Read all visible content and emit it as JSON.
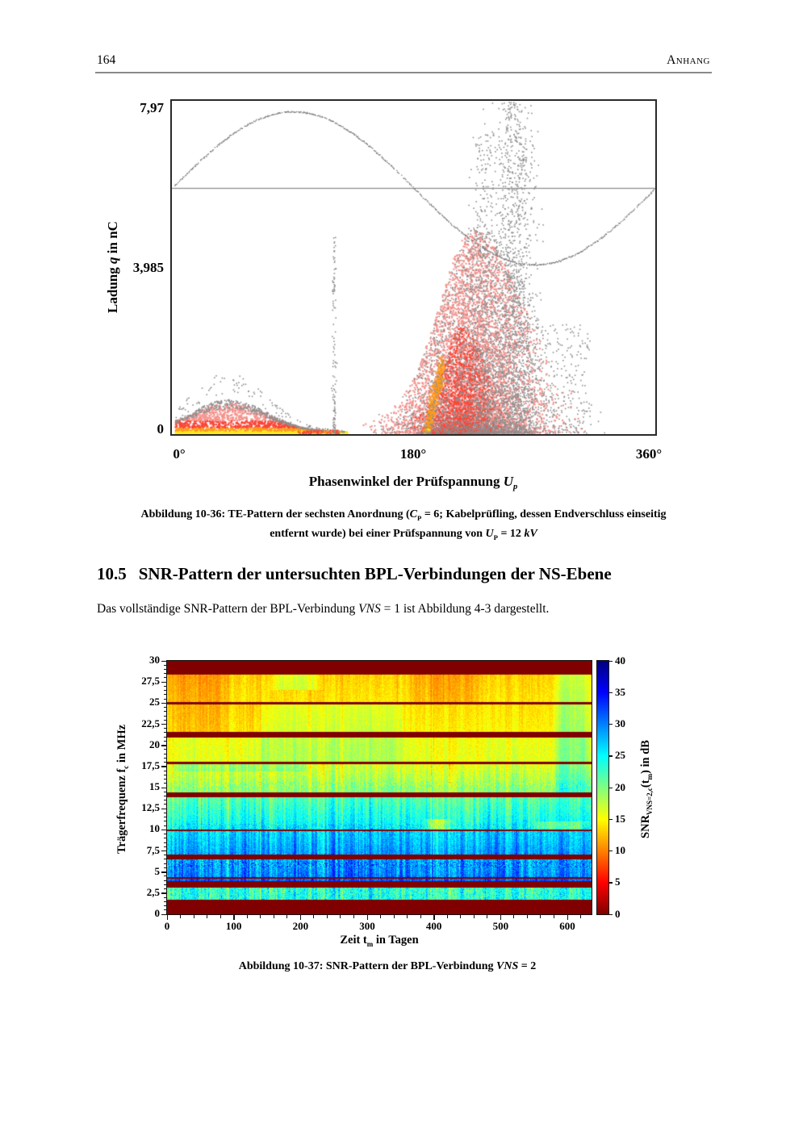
{
  "page": {
    "number": "164",
    "running_head": "Anhang"
  },
  "figure1": {
    "yticks": [
      "7,97",
      "3,985",
      "0"
    ],
    "xticks": [
      "0°",
      "180°",
      "360°"
    ],
    "ylabel": [
      {
        "t": "Ladung "
      },
      {
        "t": "q",
        "i": true
      },
      {
        "t": " in nC"
      }
    ],
    "xlabel": [
      {
        "t": "Phasenwinkel der Prüfspannung "
      },
      {
        "t": "U",
        "i": true
      },
      {
        "t": "p",
        "sub": true,
        "i": true
      }
    ],
    "caption_lines": [
      [
        {
          "t": "Abbildung 10-36: TE-Pattern der sechsten Anordnung ("
        },
        {
          "t": "C",
          "i": true
        },
        {
          "t": "P",
          "sub": true
        },
        {
          "t": " = 6; Kabelprüfling, dessen Endverschluss einseitig"
        }
      ],
      [
        {
          "t": "entfernt wurde) bei einer Prüfspannung von "
        },
        {
          "t": "U",
          "i": true
        },
        {
          "t": "P",
          "sub": true
        },
        {
          "t": " = 12 "
        },
        {
          "t": "kV",
          "i": true
        }
      ]
    ],
    "chart_data": {
      "type": "scatter",
      "title": "TE-Pattern (phase-resolved partial discharge pattern)",
      "xlabel": "Phasenwinkel der Prüfspannung Up in Grad",
      "ylabel": "Ladung q in nC",
      "xlim": [
        0,
        360
      ],
      "ylim": [
        0,
        7.97
      ],
      "xticks_deg": [
        0,
        180,
        360
      ],
      "yticks_nC": [
        0,
        3.985,
        7.97
      ],
      "sine": {
        "zero_nC": 5.89,
        "amplitude_nC": 1.83,
        "color": "#767676"
      },
      "colors": {
        "yellow": "#ffe81a",
        "orange": "#fb9b1e",
        "red": "#f94638",
        "halo": "#f5928d",
        "speckle": "#8e8e8e"
      },
      "clusters": [
        {
          "name": "salmon-cloud-neg-halfcycle",
          "type": "cloud",
          "mean_deg": 224,
          "sd_deg": 24,
          "height_nC": 4.5,
          "bias": 1.9,
          "n": 5200,
          "color": "halo",
          "size": 2.1
        },
        {
          "name": "red-core-neg-halfcycle",
          "type": "cloud",
          "mean_deg": 215,
          "sd_deg": 12,
          "height_nC": 2.2,
          "bias": 2.2,
          "n": 1600,
          "color": "red",
          "size": 2.1
        },
        {
          "name": "orange-streak",
          "type": "streak",
          "deg_start": 189,
          "deg_end": 200.5,
          "max_nC": 1.65,
          "n": 430
        },
        {
          "name": "gray-cloud-broad",
          "type": "cloud",
          "mean_deg": 228,
          "sd_deg": 26,
          "height_nC": 4.6,
          "bias": 1.8,
          "n": 2500,
          "color": "speckle",
          "size": 1.6
        },
        {
          "name": "gray-column-tall",
          "type": "tallcol",
          "mean_deg": 254,
          "sd_deg": 8,
          "max_nC": 7.93,
          "n": 1400
        },
        {
          "name": "gray-column-2",
          "type": "tallcol",
          "mean_deg": 232,
          "sd_deg": 5,
          "max_nC": 7.2,
          "n": 450
        },
        {
          "name": "gray-right-tail",
          "type": "strip2",
          "deg": [
            262,
            312
          ],
          "max_nC": 2.6,
          "n": 240
        },
        {
          "name": "hump-pos-halfcycle",
          "type": "hump",
          "deg": [
            2,
            130
          ],
          "peak_deg": 42,
          "sigma_deg": 40,
          "height_nC": 0.72,
          "n": 2400
        },
        {
          "name": "hump-gray-rim",
          "type": "rim",
          "deg": [
            2,
            128
          ],
          "peak_deg": 42,
          "sigma_deg": 40,
          "height_nC": 0.72,
          "n": 650
        },
        {
          "name": "bottom-strip-right",
          "type": "strip",
          "deg": [
            92,
            124
          ],
          "max_nC": 0.06,
          "n": 130
        },
        {
          "name": "speckle-column-120deg",
          "type": "column",
          "deg": 120.5,
          "sd_deg": 0.8,
          "max_nC": 4.7,
          "n": 120
        }
      ]
    }
  },
  "section": {
    "number": "10.5",
    "title": "SNR-Pattern der untersuchten BPL-Verbindungen der NS-Ebene"
  },
  "paragraph": [
    {
      "t": "Das vollständige SNR-Pattern der BPL-Verbindung "
    },
    {
      "t": "VNS",
      "i": true
    },
    {
      "t": " = 1 ist Abbildung 4-3 dargestellt."
    }
  ],
  "figure2": {
    "yticks": [
      "30",
      "27,5",
      "25",
      "22,5",
      "20",
      "17,5",
      "15",
      "12,5",
      "10",
      "7,5",
      "5",
      "2,5",
      "0"
    ],
    "xticks": [
      "0",
      "100",
      "200",
      "300",
      "400",
      "500",
      "600"
    ],
    "ylabel": [
      {
        "t": "Trägerfrequenz f"
      },
      {
        "t": "c",
        "sub": true
      },
      {
        "t": " in MHz"
      }
    ],
    "xlabel": [
      {
        "t": "Zeit t"
      },
      {
        "t": "m",
        "sub": true
      },
      {
        "t": " in Tagen"
      }
    ],
    "colorbar": {
      "ticks": [
        "40",
        "35",
        "30",
        "25",
        "20",
        "15",
        "10",
        "5",
        "0"
      ],
      "label": [
        {
          "t": "SNR"
        },
        {
          "t": "VNS=2,c",
          "sub": true
        },
        {
          "t": "(t"
        },
        {
          "t": "m",
          "sub": true
        },
        {
          "t": ") in dB"
        }
      ]
    },
    "caption": [
      {
        "t": "Abbildung 10-37: SNR-Pattern der BPL-Verbindung "
      },
      {
        "t": "VNS",
        "i": true
      },
      {
        "t": " = 2"
      }
    ],
    "chart_data": {
      "type": "heatmap",
      "title": "SNR-Pattern der BPL-Verbindung VNS = 2",
      "xlabel": "Zeit tm in Tagen",
      "ylabel": "Trägerfrequenz fc in MHz",
      "xlim": [
        0,
        636
      ],
      "ylim": [
        0,
        30
      ],
      "xticks_days": [
        0,
        100,
        200,
        300,
        400,
        500,
        600
      ],
      "yticks_MHz": [
        0,
        2.5,
        5,
        7.5,
        10,
        12.5,
        15,
        17.5,
        20,
        22.5,
        25,
        27.5,
        30
      ],
      "colorbar_range_dB": [
        0,
        40
      ],
      "colorbar_ticks_dB": [
        0,
        5,
        10,
        15,
        20,
        25,
        30,
        35,
        40
      ],
      "colormap": "jet reversed (0 dB = dark red, 40 dB = dark blue); notched carrier bands masked at 0 dB",
      "bands": [
        {
          "f": [
            28.4,
            30.0
          ],
          "masked": true
        },
        {
          "f": [
            25.1,
            28.4
          ],
          "snr": [
            13,
            14
          ],
          "noise": 1.2,
          "streak": 1.3
        },
        {
          "f": [
            24.85,
            25.1
          ],
          "masked": true
        },
        {
          "f": [
            21.6,
            24.85
          ],
          "snr": [
            14,
            14.8
          ],
          "noise": 1.2,
          "streak": 1.4
        },
        {
          "f": [
            20.9,
            21.6
          ],
          "masked": true
        },
        {
          "f": [
            18.05,
            20.9
          ],
          "snr": [
            15.5,
            16
          ],
          "noise": 1.4,
          "streak": 1.6
        },
        {
          "f": [
            17.8,
            18.05
          ],
          "masked": true
        },
        {
          "f": [
            14.45,
            17.8
          ],
          "snr": [
            16,
            19.5
          ],
          "noise": 1.8,
          "streak": 2.6,
          "speckle": [
            [
              14.8,
              15.7
            ],
            5
          ]
        },
        {
          "f": [
            13.85,
            14.45
          ],
          "masked": true
        },
        {
          "f": [
            10.05,
            13.85
          ],
          "snr": [
            21.5,
            25.5
          ],
          "noise": 2.0,
          "streak": 3.6,
          "speckle": [
            [
              10.05,
              10.7
            ],
            5
          ]
        },
        {
          "f": [
            9.85,
            10.05
          ],
          "masked": true
        },
        {
          "f": [
            7.1,
            9.85
          ],
          "snr": [
            26.5,
            29
          ],
          "noise": 2.0,
          "streak": 3.8,
          "speckle": [
            [
              9.4,
              9.85
            ],
            4
          ]
        },
        {
          "f": [
            6.5,
            7.1
          ],
          "masked": true
        },
        {
          "f": [
            4.4,
            6.5
          ],
          "snr": [
            28.5,
            30
          ],
          "noise": 2.4,
          "streak": 4.2,
          "speckle": [
            [
              5.5,
              6.35
            ],
            8
          ]
        },
        {
          "f": [
            4.25,
            4.4
          ],
          "masked": true
        },
        {
          "f": [
            3.95,
            4.25
          ],
          "snr": [
            31.5,
            31.5
          ],
          "noise": 2.0,
          "streak": 3.0
        },
        {
          "f": [
            3.15,
            3.95
          ],
          "masked": true
        },
        {
          "f": [
            1.75,
            3.15
          ],
          "snr": [
            23,
            23.5
          ],
          "noise": 2.8,
          "streak": 4.0,
          "speckle": [
            [
              1.75,
              3.15
            ],
            5
          ]
        },
        {
          "f": [
            0,
            1.75
          ],
          "masked": true
        }
      ],
      "mods": [
        {
          "days": [
            0,
            95
          ],
          "f": [
            21.6,
            28.4
          ],
          "dsnr": -2.2
        },
        {
          "days": [
            355,
            470
          ],
          "f": [
            25.1,
            28.4
          ],
          "dsnr": -1.6
        },
        {
          "days": [
            95,
            160
          ],
          "f": [
            21.6,
            24.85
          ],
          "dsnr": -1.5
        },
        {
          "days": [
            575,
            640
          ],
          "f": [
            14.45,
            28.4
          ],
          "dsnr": 4.2
        },
        {
          "days": [
            125,
            360
          ],
          "f": [
            18.05,
            24.85
          ],
          "dsnr": 2.0
        },
        {
          "days": [
            150,
            235
          ],
          "f": [
            26.6,
            28.4
          ],
          "dsnr": 3.2
        },
        {
          "days": [
            0,
            215
          ],
          "f": [
            16.9,
            17.8
          ],
          "dsnr": 2.6
        },
        {
          "days": [
            380,
            430
          ],
          "f": [
            10.05,
            11.3
          ],
          "dsnr": -6
        },
        {
          "days": [
            545,
            636
          ],
          "f": [
            10.05,
            11.0
          ],
          "dsnr": -4
        }
      ]
    }
  }
}
